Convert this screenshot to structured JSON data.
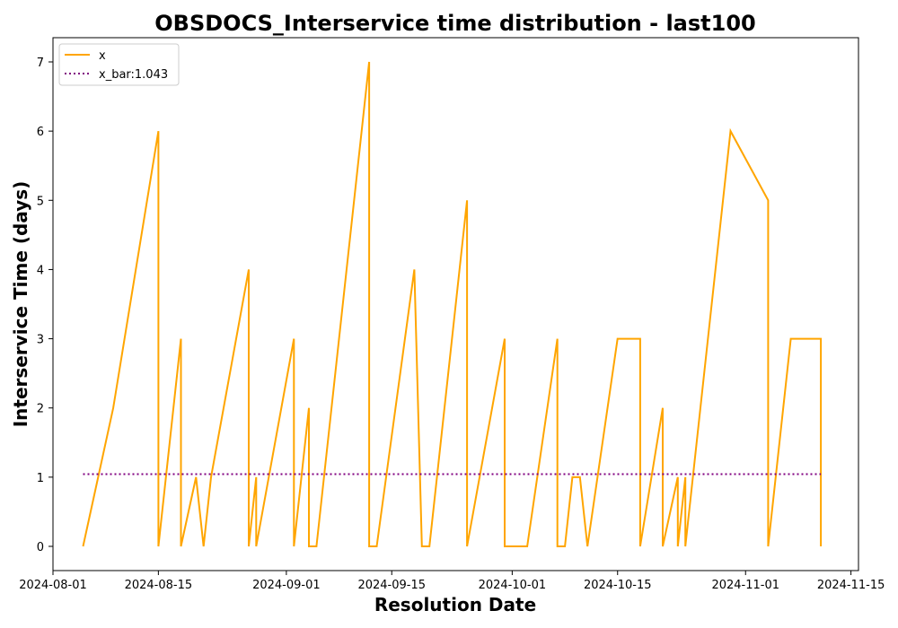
{
  "chart_data": {
    "type": "line",
    "title": "OBSDOCS_Interservice time distribution - last100",
    "xlabel": "Resolution Date",
    "ylabel": "Interservice Time (days)",
    "x_axis_type": "date",
    "xlim": [
      "2024-08-01",
      "2024-11-16"
    ],
    "ylim": [
      -0.35,
      7.35
    ],
    "x_ticks": [
      "2024-08-01",
      "2024-08-15",
      "2024-09-01",
      "2024-09-15",
      "2024-10-01",
      "2024-10-15",
      "2024-11-01",
      "2024-11-15"
    ],
    "y_ticks": [
      0,
      1,
      2,
      3,
      4,
      5,
      6,
      7
    ],
    "grid": false,
    "legend_position": "top-left",
    "series": [
      {
        "name": "x",
        "color": "#FFA500",
        "style": "solid",
        "x": [
          "2024-08-05",
          "2024-08-07",
          "2024-08-09",
          "2024-08-15",
          "2024-08-15",
          "2024-08-18",
          "2024-08-18",
          "2024-08-20",
          "2024-08-21",
          "2024-08-22",
          "2024-08-27",
          "2024-08-27",
          "2024-08-28",
          "2024-08-28",
          "2024-09-02",
          "2024-09-02",
          "2024-09-04",
          "2024-09-04",
          "2024-09-05",
          "2024-09-12",
          "2024-09-12",
          "2024-09-13",
          "2024-09-18",
          "2024-09-19",
          "2024-09-20",
          "2024-09-25",
          "2024-09-25",
          "2024-09-30",
          "2024-09-30",
          "2024-10-03",
          "2024-10-07",
          "2024-10-07",
          "2024-10-08",
          "2024-10-09",
          "2024-10-10",
          "2024-10-11",
          "2024-10-15",
          "2024-10-18",
          "2024-10-18",
          "2024-10-21",
          "2024-10-21",
          "2024-10-23",
          "2024-10-23",
          "2024-10-24",
          "2024-10-24",
          "2024-10-30",
          "2024-11-04",
          "2024-11-04",
          "2024-11-07",
          "2024-11-11",
          "2024-11-11"
        ],
        "y": [
          0,
          1,
          2,
          6,
          0,
          3,
          0,
          1,
          0,
          1,
          4,
          0,
          1,
          0,
          3,
          0,
          2,
          0,
          0,
          7,
          0,
          0,
          4,
          0,
          0,
          5,
          0,
          3,
          0,
          0,
          3,
          0,
          0,
          1,
          1,
          0,
          3,
          3,
          0,
          2,
          0,
          1,
          0,
          1,
          0,
          6,
          5,
          0,
          3,
          3,
          0
        ]
      },
      {
        "name": "x_bar:1.043",
        "color": "#800080",
        "style": "dotted",
        "x": [
          "2024-08-05",
          "2024-11-11"
        ],
        "y": [
          1.043,
          1.043
        ]
      }
    ]
  }
}
